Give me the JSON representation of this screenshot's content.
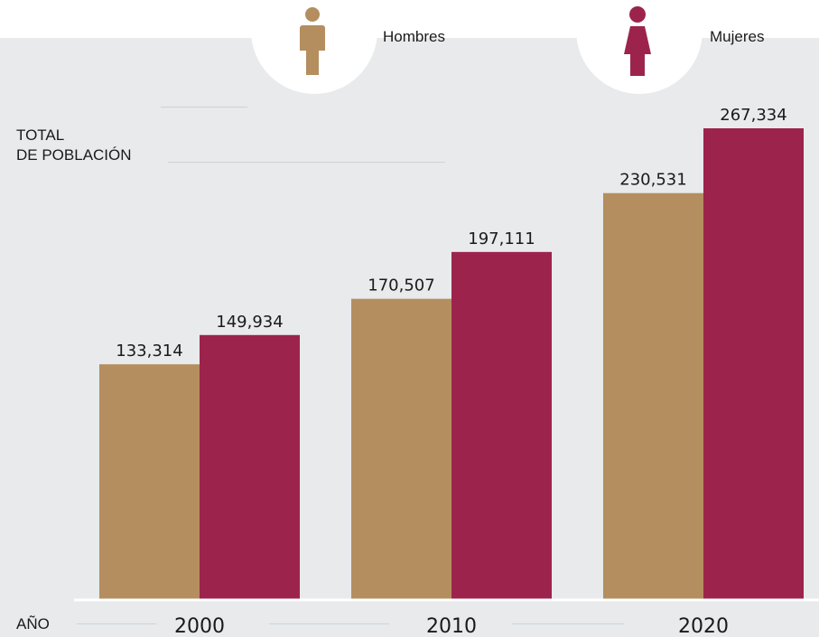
{
  "chart_data": {
    "type": "bar",
    "categories": [
      "2000",
      "2010",
      "2020"
    ],
    "series": [
      {
        "name": "Hombres",
        "values": [
          133314,
          170507,
          230531
        ],
        "color": "#b48e5f"
      },
      {
        "name": "Mujeres",
        "values": [
          149934,
          197111,
          267334
        ],
        "color": "#9c244c"
      }
    ],
    "value_labels": [
      [
        "133,314",
        "170,507",
        "230,531"
      ],
      [
        "149,934",
        "197,111",
        "267,334"
      ]
    ],
    "ylabel_line1": "TOTAL",
    "ylabel_line2": "DE POBLACIÓN",
    "xlabel": "AÑO",
    "legend_position": "top-right",
    "grid": false
  },
  "legend": {
    "men_label": "Hombres",
    "women_label": "Mujeres",
    "men_icon": "man-icon",
    "women_icon": "woman-icon"
  },
  "colors": {
    "men": "#b48e5f",
    "women": "#9c244c",
    "background": "#e8eaeb",
    "baseline": "#ffffff"
  }
}
